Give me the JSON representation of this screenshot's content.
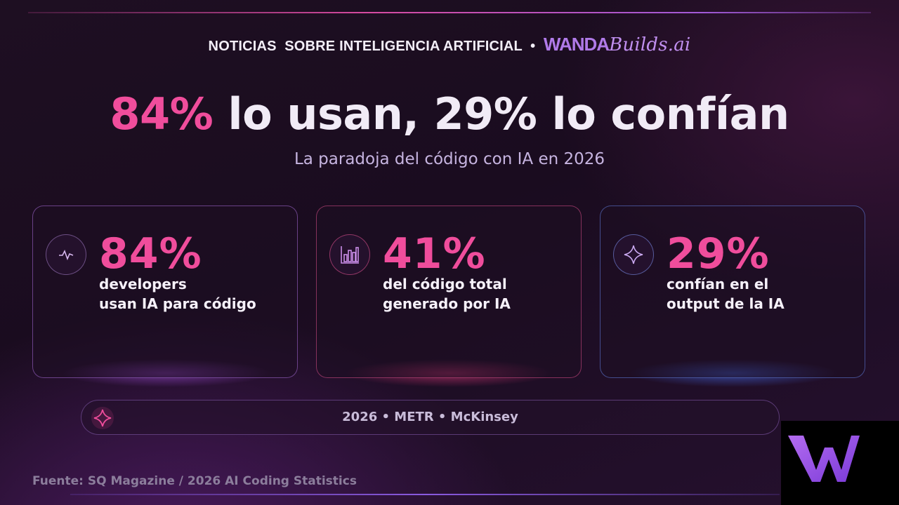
{
  "header": {
    "topic": "NOTICIAS  SOBRE INTELIGENCIA ARTIFICIAL",
    "separator": "•",
    "brand_main": "WANDA",
    "brand_script": "Builds.ai"
  },
  "title": {
    "highlight": "84%",
    "rest": "lo usan, 29% lo confían"
  },
  "subtitle": "La paradoja del código con IA en 2026",
  "cards": [
    {
      "value": "84%",
      "line1": "developers",
      "line2": "usan IA para código"
    },
    {
      "value": "41%",
      "line1": "del código total",
      "line2": "generado por IA"
    },
    {
      "value": "29%",
      "line1": "confían en el",
      "line2": "output de la IA"
    }
  ],
  "footer_pill": "2026 • METR • McKinsey",
  "source": "Fuente: SQ Magazine / 2026 AI Coding Statistics"
}
